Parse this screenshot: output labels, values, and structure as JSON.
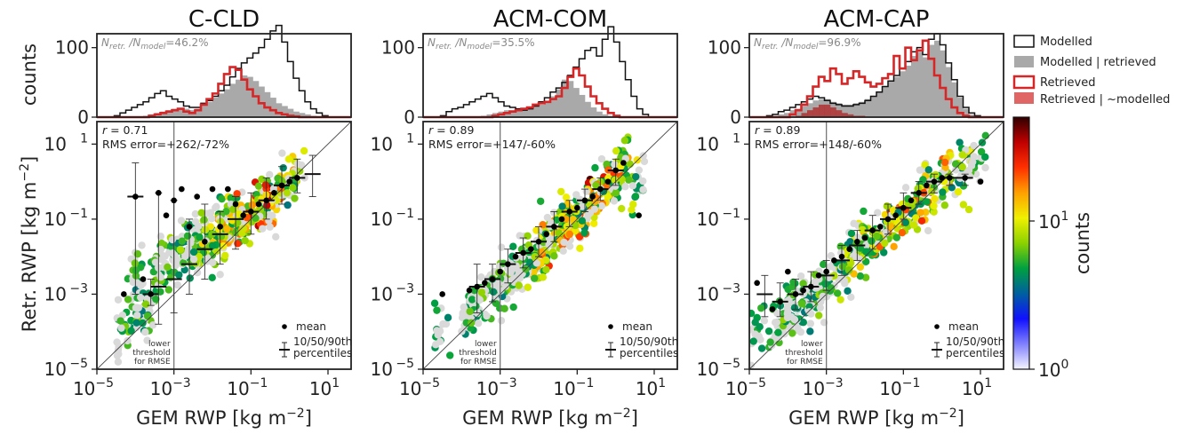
{
  "chart_data": {
    "type": "scatter",
    "y_axis_label": "Retr. RWP [kg m",
    "x_axis_label": "GEM RWP [kg m",
    "unit_superscript": "−2",
    "hist_ylabel": "counts",
    "ratio_prefix_retr": "N",
    "ratio_sub_retr": "retr.",
    "ratio_slash": " /",
    "ratio_prefix_model": "N",
    "ratio_sub_model": "model",
    "r_label": "r",
    "rms_label": "RMS error",
    "threshold_text": [
      "lower",
      "threshold",
      "for RMSE"
    ],
    "mean_label": "mean",
    "percentile_label": [
      "10/50/90th",
      "percentiles"
    ],
    "x_ticks": [
      "−5",
      "−3",
      "−1",
      "1"
    ],
    "y_ticks": [
      "−5",
      "−3",
      "−1",
      "1"
    ],
    "tick_base": "10",
    "hist_y_ticks": [
      "0",
      "100"
    ],
    "xlim_log10": [
      -5,
      1.6
    ],
    "ylim_log10": [
      -5,
      1.6
    ],
    "hist_ylim": [
      0,
      120
    ],
    "threshold_log10": -3,
    "colorbar": {
      "label": "counts",
      "ticks": [
        "0",
        "1"
      ],
      "tick_base": "10",
      "range_log10": [
        0,
        1.7
      ],
      "colors": [
        "#f4f4ff",
        "#8080ff",
        "#1010ff",
        "#005fa0",
        "#00a040",
        "#8cd200",
        "#f0f000",
        "#ffa000",
        "#ff3000",
        "#c00000",
        "#300000"
      ]
    },
    "legend": {
      "placement": "right",
      "entries": [
        {
          "label": "Modelled",
          "style": "outline-black"
        },
        {
          "label": "Modelled | retrieved",
          "style": "fill-gray"
        },
        {
          "label": "Retrieved",
          "style": "outline-red"
        },
        {
          "label": "Retrieved | ~modelled",
          "style": "fill-red"
        }
      ]
    },
    "panels": [
      {
        "title": "C-CLD",
        "ratio_value": "46.2%",
        "r_value": "0.71",
        "rms_value": "+262/-72%",
        "modelled": [
          0,
          0,
          0,
          2,
          6,
          10,
          14,
          18,
          22,
          28,
          34,
          38,
          30,
          26,
          22,
          16,
          14,
          14,
          20,
          24,
          30,
          38,
          46,
          58,
          70,
          78,
          85,
          92,
          100,
          112,
          124,
          132,
          108,
          80,
          56,
          38,
          22,
          12,
          6,
          2,
          0,
          0,
          0,
          0
        ],
        "modelled_retrieved": [
          0,
          0,
          0,
          0,
          0,
          0,
          0,
          0,
          2,
          4,
          6,
          8,
          10,
          12,
          12,
          12,
          10,
          12,
          18,
          22,
          28,
          34,
          40,
          48,
          54,
          60,
          58,
          52,
          44,
          36,
          28,
          20,
          16,
          12,
          8,
          6,
          4,
          2,
          0,
          0,
          0,
          0,
          0,
          0
        ],
        "retrieved": [
          0,
          0,
          0,
          0,
          0,
          0,
          0,
          0,
          0,
          2,
          4,
          6,
          8,
          10,
          12,
          8,
          6,
          10,
          18,
          26,
          34,
          48,
          62,
          72,
          68,
          54,
          40,
          30,
          20,
          14,
          10,
          6,
          4,
          2,
          1,
          0,
          0,
          0,
          0,
          0,
          0,
          0,
          0,
          0
        ],
        "retrieved_not_modelled": [
          0,
          0,
          0,
          0,
          0,
          0,
          0,
          0,
          0,
          0,
          0,
          0,
          0,
          0,
          0,
          0,
          0,
          0,
          0,
          0,
          0,
          0,
          0,
          0,
          0,
          0,
          0,
          0,
          0,
          0,
          0,
          0,
          0,
          0,
          0,
          0,
          0,
          0,
          0,
          0,
          0,
          0,
          0,
          0
        ],
        "mean_points": [
          [
            -4.3,
            -3.0
          ],
          [
            -4.0,
            -0.4
          ],
          [
            -3.8,
            -2.6
          ],
          [
            -3.6,
            -3.0
          ],
          [
            -3.4,
            -0.3
          ],
          [
            -3.2,
            -0.9
          ],
          [
            -3.0,
            -0.5
          ],
          [
            -2.8,
            -0.2
          ],
          [
            -2.6,
            -1.2
          ],
          [
            -2.4,
            -0.4
          ],
          [
            -2.2,
            -1.6
          ],
          [
            -2.0,
            -0.2
          ],
          [
            -1.8,
            -1.2
          ],
          [
            -1.6,
            -0.2
          ],
          [
            -1.4,
            -0.6
          ],
          [
            -1.2,
            -0.9
          ],
          [
            -1.0,
            -0.8
          ],
          [
            -0.8,
            -0.6
          ],
          [
            -0.6,
            -0.5
          ],
          [
            -0.4,
            -0.3
          ],
          [
            -0.2,
            -0.1
          ],
          [
            0.0,
            0.0
          ],
          [
            0.2,
            0.1
          ]
        ],
        "percentile_bars": [
          [
            -4.0,
            -3.0,
            -0.4,
            0.5
          ],
          [
            -3.6,
            -3.3,
            -3.0,
            -2.6
          ],
          [
            -3.4,
            -3.8,
            -2.8,
            -0.3
          ],
          [
            -3.0,
            -3.5,
            -2.6,
            -0.5
          ],
          [
            -2.6,
            -3.0,
            -2.2,
            -1.0
          ],
          [
            -2.2,
            -2.6,
            -1.8,
            -0.6
          ],
          [
            -1.8,
            -2.2,
            -1.4,
            -0.8
          ],
          [
            -1.4,
            -1.8,
            -1.0,
            -0.4
          ],
          [
            -1.0,
            -1.4,
            -0.8,
            -0.3
          ],
          [
            -0.6,
            -1.0,
            -0.5,
            0.1
          ],
          [
            -0.2,
            -0.6,
            -0.1,
            0.4
          ],
          [
            0.2,
            -0.3,
            0.1,
            0.6
          ],
          [
            0.6,
            -0.4,
            0.2,
            0.7
          ]
        ]
      },
      {
        "title": "ACM-COM",
        "ratio_value": "35.5%",
        "r_value": "0.89",
        "rms_value": "+147/-60%",
        "modelled": [
          0,
          0,
          0,
          2,
          8,
          12,
          14,
          18,
          22,
          26,
          30,
          34,
          28,
          22,
          16,
          14,
          12,
          10,
          12,
          16,
          22,
          28,
          36,
          42,
          50,
          60,
          72,
          84,
          96,
          100,
          88,
          112,
          130,
          108,
          80,
          54,
          30,
          12,
          4,
          0,
          0,
          0,
          0,
          0
        ],
        "modelled_retrieved": [
          0,
          0,
          0,
          0,
          0,
          0,
          0,
          0,
          0,
          0,
          2,
          4,
          6,
          8,
          10,
          10,
          10,
          12,
          14,
          16,
          18,
          22,
          30,
          40,
          54,
          52,
          42,
          32,
          22,
          14,
          8,
          4,
          2,
          0,
          0,
          0,
          0,
          0,
          0,
          0,
          0,
          0,
          0,
          0
        ],
        "retrieved": [
          0,
          0,
          0,
          0,
          0,
          0,
          0,
          0,
          0,
          0,
          0,
          0,
          2,
          4,
          6,
          8,
          10,
          12,
          14,
          18,
          20,
          22,
          26,
          30,
          42,
          58,
          70,
          60,
          44,
          30,
          20,
          12,
          6,
          2,
          0,
          0,
          0,
          0,
          0,
          0,
          0,
          0,
          0,
          0
        ],
        "retrieved_not_modelled": [
          0,
          0,
          0,
          0,
          0,
          0,
          0,
          0,
          0,
          0,
          0,
          0,
          0,
          0,
          0,
          0,
          0,
          0,
          0,
          0,
          0,
          0,
          0,
          0,
          0,
          0,
          0,
          0,
          0,
          0,
          0,
          0,
          0,
          0,
          0,
          0,
          0,
          0,
          0,
          0,
          0,
          0,
          0,
          0
        ],
        "mean_points": [
          [
            -4.5,
            -3.0
          ],
          [
            -3.8,
            -2.9
          ],
          [
            -3.6,
            -2.8
          ],
          [
            -3.4,
            -2.7
          ],
          [
            -3.2,
            -2.6
          ],
          [
            -3.0,
            -2.4
          ],
          [
            -2.8,
            -2.2
          ],
          [
            -2.6,
            -2.0
          ],
          [
            -2.4,
            -1.9
          ],
          [
            -2.2,
            -1.8
          ],
          [
            -2.0,
            -1.6
          ],
          [
            -1.8,
            -1.4
          ],
          [
            -1.6,
            -1.2
          ],
          [
            -1.4,
            -1.0
          ],
          [
            -1.2,
            -0.8
          ],
          [
            -1.0,
            -0.7
          ],
          [
            -0.8,
            -0.5
          ],
          [
            -0.6,
            -0.4
          ],
          [
            -0.4,
            -0.2
          ],
          [
            -0.2,
            0.0
          ],
          [
            0.0,
            0.3
          ],
          [
            0.2,
            0.5
          ],
          [
            0.6,
            -0.9
          ]
        ],
        "percentile_bars": [
          [
            -3.6,
            -3.5,
            -2.8,
            -2.2
          ],
          [
            -3.2,
            -3.2,
            -2.6,
            -2.2
          ],
          [
            -2.8,
            -2.7,
            -2.2,
            -1.8
          ],
          [
            -2.4,
            -2.3,
            -1.9,
            -1.5
          ],
          [
            -2.0,
            -2.0,
            -1.6,
            -1.2
          ],
          [
            -1.6,
            -1.6,
            -1.2,
            -0.8
          ],
          [
            -1.2,
            -1.2,
            -0.8,
            -0.5
          ],
          [
            -0.8,
            -0.8,
            -0.5,
            -0.2
          ],
          [
            -0.4,
            -0.5,
            -0.2,
            0.1
          ],
          [
            0.0,
            -0.1,
            0.3,
            0.6
          ]
        ]
      },
      {
        "title": "ACM-CAP",
        "ratio_value": "96.9%",
        "r_value": "0.89",
        "rms_value": "+148/-60%",
        "modelled": [
          0,
          0,
          0,
          2,
          4,
          8,
          10,
          14,
          18,
          22,
          26,
          30,
          28,
          24,
          20,
          18,
          16,
          16,
          18,
          20,
          24,
          30,
          36,
          44,
          52,
          60,
          70,
          80,
          94,
          100,
          90,
          112,
          120,
          104,
          78,
          54,
          30,
          14,
          6,
          2,
          0,
          0,
          0,
          0
        ],
        "modelled_retrieved": [
          0,
          0,
          0,
          0,
          2,
          4,
          6,
          10,
          12,
          16,
          20,
          24,
          26,
          26,
          22,
          20,
          18,
          18,
          20,
          22,
          26,
          30,
          36,
          44,
          52,
          58,
          66,
          74,
          88,
          94,
          86,
          104,
          110,
          96,
          72,
          50,
          28,
          12,
          4,
          0,
          0,
          0,
          0,
          0
        ],
        "retrieved": [
          0,
          0,
          0,
          0,
          0,
          0,
          0,
          4,
          10,
          18,
          30,
          44,
          58,
          52,
          70,
          62,
          48,
          56,
          66,
          58,
          50,
          44,
          48,
          56,
          62,
          88,
          70,
          100,
          82,
          96,
          110,
          84,
          60,
          42,
          26,
          14,
          6,
          2,
          0,
          0,
          0,
          0,
          0,
          0
        ],
        "retrieved_not_modelled": [
          0,
          0,
          0,
          0,
          0,
          0,
          0,
          0,
          2,
          6,
          10,
          14,
          18,
          18,
          14,
          10,
          6,
          4,
          2,
          2,
          0,
          0,
          0,
          0,
          0,
          0,
          0,
          0,
          0,
          0,
          0,
          0,
          0,
          0,
          0,
          0,
          0,
          0,
          0,
          0,
          0,
          0,
          0,
          0
        ],
        "mean_points": [
          [
            -4.8,
            -2.7
          ],
          [
            -4.4,
            -3.4
          ],
          [
            -4.2,
            -3.2
          ],
          [
            -4.0,
            -2.4
          ],
          [
            -3.8,
            -3.0
          ],
          [
            -3.6,
            -2.9
          ],
          [
            -3.4,
            -2.8
          ],
          [
            -3.2,
            -2.5
          ],
          [
            -3.0,
            -2.4
          ],
          [
            -2.8,
            -2.1
          ],
          [
            -2.6,
            -2.0
          ],
          [
            -2.4,
            -1.8
          ],
          [
            -2.2,
            -1.6
          ],
          [
            -2.0,
            -1.5
          ],
          [
            -1.8,
            -1.3
          ],
          [
            -1.6,
            -1.2
          ],
          [
            -1.4,
            -1.0
          ],
          [
            -1.2,
            -0.9
          ],
          [
            -1.0,
            -0.7
          ],
          [
            -0.8,
            -0.5
          ],
          [
            -0.6,
            -0.3
          ],
          [
            -0.4,
            -0.1
          ],
          [
            -0.2,
            0.0
          ],
          [
            0.0,
            0.1
          ],
          [
            0.2,
            0.1
          ],
          [
            0.6,
            0.1
          ],
          [
            1.0,
            0.0
          ]
        ],
        "percentile_bars": [
          [
            -4.6,
            -3.6,
            -3.0,
            -2.5
          ],
          [
            -4.2,
            -3.6,
            -3.2,
            -2.7
          ],
          [
            -3.8,
            -3.4,
            -3.0,
            -2.6
          ],
          [
            -3.4,
            -3.2,
            -2.8,
            -2.4
          ],
          [
            -3.0,
            -2.9,
            -2.5,
            -2.1
          ],
          [
            -2.6,
            -2.5,
            -2.1,
            -1.7
          ],
          [
            -2.2,
            -2.1,
            -1.7,
            -1.3
          ],
          [
            -1.8,
            -1.8,
            -1.3,
            -0.9
          ],
          [
            -1.4,
            -1.4,
            -1.0,
            -0.6
          ],
          [
            -1.0,
            -1.0,
            -0.7,
            -0.3
          ],
          [
            -0.6,
            -0.6,
            -0.3,
            0.0
          ],
          [
            -0.2,
            -0.3,
            0.0,
            0.2
          ],
          [
            0.2,
            -0.1,
            0.1,
            0.2
          ],
          [
            0.6,
            -0.1,
            0.1,
            0.2
          ]
        ]
      }
    ]
  }
}
